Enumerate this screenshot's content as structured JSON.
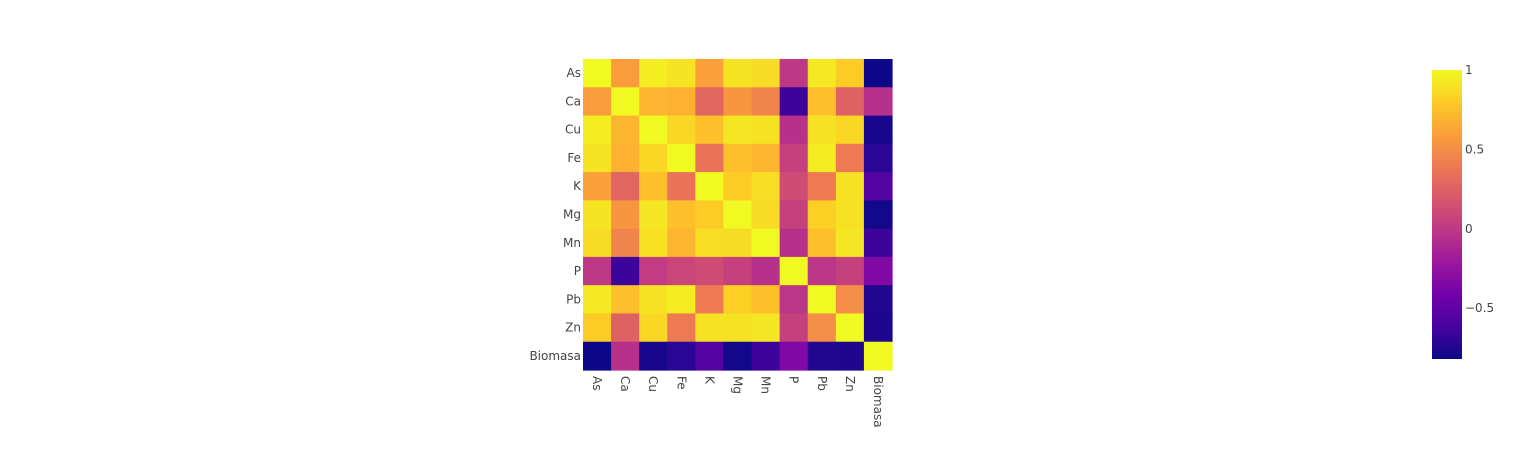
{
  "chart_data": {
    "type": "heatmap",
    "title": "",
    "xlabel": "",
    "ylabel": "",
    "x": [
      "As",
      "Ca",
      "Cu",
      "Fe",
      "K",
      "Mg",
      "Mn",
      "P",
      "Pb",
      "Zn",
      "Biomasa"
    ],
    "y": [
      "As",
      "Ca",
      "Cu",
      "Fe",
      "K",
      "Mg",
      "Mn",
      "P",
      "Pb",
      "Zn",
      "Biomasa"
    ],
    "z": [
      [
        1.0,
        0.58,
        0.95,
        0.91,
        0.6,
        0.91,
        0.87,
        0.0,
        0.93,
        0.8,
        -0.82
      ],
      [
        0.58,
        1.0,
        0.7,
        0.68,
        0.28,
        0.55,
        0.45,
        -0.65,
        0.75,
        0.25,
        -0.05
      ],
      [
        0.95,
        0.7,
        1.0,
        0.85,
        0.75,
        0.92,
        0.9,
        -0.05,
        0.9,
        0.85,
        -0.78
      ],
      [
        0.91,
        0.68,
        0.85,
        1.0,
        0.35,
        0.75,
        0.7,
        0.05,
        0.95,
        0.4,
        -0.72
      ],
      [
        0.6,
        0.28,
        0.75,
        0.35,
        1.0,
        0.8,
        0.88,
        0.12,
        0.4,
        0.9,
        -0.55
      ],
      [
        0.91,
        0.55,
        0.92,
        0.75,
        0.8,
        1.0,
        0.87,
        0.05,
        0.82,
        0.9,
        -0.8
      ],
      [
        0.87,
        0.45,
        0.9,
        0.7,
        0.88,
        0.87,
        1.0,
        -0.05,
        0.75,
        0.92,
        -0.65
      ],
      [
        0.0,
        -0.65,
        0.02,
        0.08,
        0.12,
        0.05,
        -0.05,
        1.0,
        -0.02,
        0.05,
        -0.35
      ],
      [
        0.93,
        0.75,
        0.9,
        0.95,
        0.4,
        0.82,
        0.75,
        -0.02,
        1.0,
        0.5,
        -0.75
      ],
      [
        0.8,
        0.25,
        0.85,
        0.4,
        0.9,
        0.9,
        0.92,
        0.05,
        0.5,
        1.0,
        -0.76
      ],
      [
        -0.82,
        -0.05,
        -0.78,
        -0.72,
        -0.55,
        -0.8,
        -0.65,
        -0.35,
        -0.75,
        -0.76,
        1.0
      ]
    ],
    "zmin": -0.82,
    "zmax": 1.0,
    "colorscale": [
      "#0d0887",
      "#46039f",
      "#7201a8",
      "#9c179e",
      "#bd3786",
      "#d8576b",
      "#ed7953",
      "#fb9f3a",
      "#fdca26",
      "#f0f921"
    ],
    "colorbar": {
      "tick_values": [
        1,
        0.5,
        0,
        -0.5
      ],
      "tick_labels": [
        "1",
        "0.5",
        "0",
        "−0.5"
      ]
    },
    "legend": "colorbar-right",
    "grid": false
  }
}
